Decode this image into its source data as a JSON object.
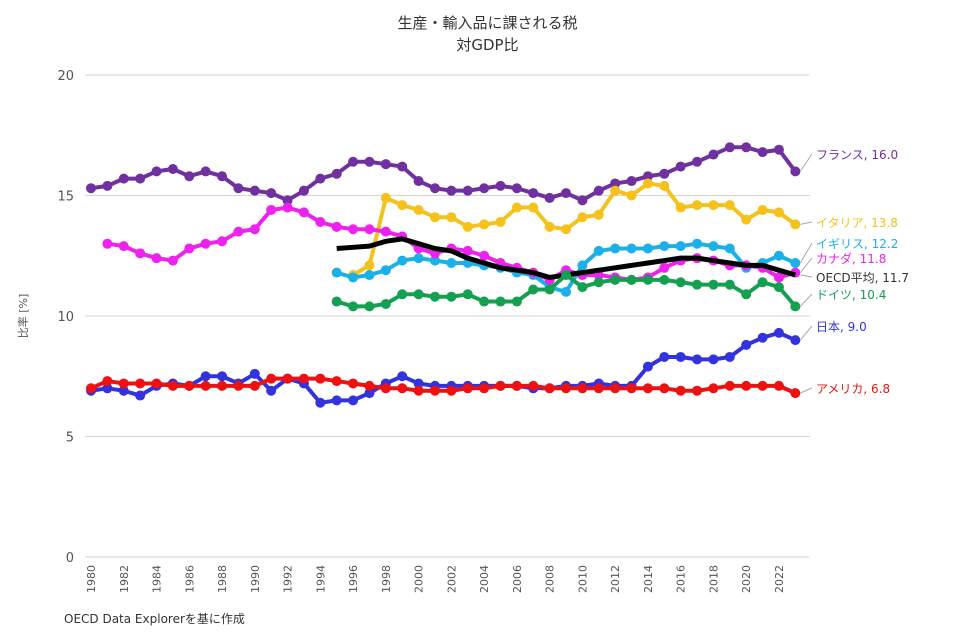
{
  "chart_data": {
    "type": "line",
    "title": "生産・輸入品に課される税",
    "subtitle": "対GDP比",
    "ylabel": "比率 [%]",
    "xlabel": "",
    "ylim": [
      0,
      20
    ],
    "yticks": [
      0,
      5,
      10,
      15,
      20
    ],
    "xlim": [
      1980,
      2023
    ],
    "xticks": [
      1980,
      1982,
      1984,
      1986,
      1988,
      1990,
      1992,
      1994,
      1996,
      1998,
      2000,
      2002,
      2004,
      2006,
      2008,
      2010,
      2012,
      2014,
      2016,
      2018,
      2020,
      2022
    ],
    "grid": true,
    "series": [
      {
        "name": "フランス",
        "label": "フランス, 16.0",
        "color": "#7030a0",
        "markers": true,
        "start": 1980,
        "values": [
          15.3,
          15.4,
          15.7,
          15.7,
          16.0,
          16.1,
          15.8,
          16.0,
          15.8,
          15.3,
          15.2,
          15.1,
          14.8,
          15.2,
          15.7,
          15.9,
          16.4,
          16.4,
          16.3,
          16.2,
          15.6,
          15.3,
          15.2,
          15.2,
          15.3,
          15.4,
          15.3,
          15.1,
          14.9,
          15.1,
          14.8,
          15.2,
          15.5,
          15.6,
          15.8,
          15.9,
          16.2,
          16.4,
          16.7,
          17.0,
          17.0,
          16.8,
          16.9,
          16.0
        ]
      },
      {
        "name": "イタリア",
        "label": "イタリア, 13.8",
        "color": "#f5c21b",
        "markers": true,
        "start": 1996,
        "values": [
          11.7,
          12.1,
          14.9,
          14.6,
          14.4,
          14.1,
          14.1,
          13.7,
          13.8,
          13.9,
          14.5,
          14.5,
          13.7,
          13.6,
          14.1,
          14.2,
          15.2,
          15.0,
          15.5,
          15.4,
          14.5,
          14.6,
          14.6,
          14.6,
          14.0,
          14.4,
          14.3,
          13.8
        ]
      },
      {
        "name": "イギリス",
        "label": "イギリス, 12.2",
        "color": "#1bb0e8",
        "markers": true,
        "start": 1995,
        "values": [
          11.8,
          11.6,
          11.7,
          11.9,
          12.3,
          12.4,
          12.3,
          12.2,
          12.2,
          12.1,
          12.0,
          11.8,
          11.7,
          11.2,
          11.0,
          12.1,
          12.7,
          12.8,
          12.8,
          12.8,
          12.9,
          12.9,
          13.0,
          12.9,
          12.8,
          12.0,
          12.2,
          12.5,
          12.2
        ]
      },
      {
        "name": "カナダ",
        "label": "カナダ, 11.8",
        "color": "#ee22ee",
        "markers": true,
        "start": 1981,
        "values": [
          13.0,
          12.9,
          12.6,
          12.4,
          12.3,
          12.8,
          13.0,
          13.1,
          13.5,
          13.6,
          14.4,
          14.5,
          14.3,
          13.9,
          13.7,
          13.6,
          13.6,
          13.5,
          13.3,
          12.8,
          12.6,
          12.8,
          12.7,
          12.5,
          12.2,
          12.0,
          11.8,
          11.5,
          11.9,
          11.7,
          11.7,
          11.6,
          11.5,
          11.6,
          12.0,
          12.3,
          12.4,
          12.3,
          12.1,
          12.1,
          12.0,
          11.6,
          11.8
        ]
      },
      {
        "name": "OECD平均",
        "label": "OECD平均, 11.7",
        "color": "#000000",
        "markers": false,
        "start": 1995,
        "values": [
          12.8,
          12.85,
          12.9,
          13.1,
          13.2,
          13.0,
          12.8,
          12.7,
          12.4,
          12.2,
          12.0,
          11.9,
          11.8,
          11.6,
          11.7,
          11.8,
          11.9,
          12.0,
          12.1,
          12.2,
          12.3,
          12.4,
          12.4,
          12.3,
          12.2,
          12.1,
          12.1,
          11.9,
          11.7
        ]
      },
      {
        "name": "ドイツ",
        "label": "ドイツ, 10.4",
        "color": "#14a050",
        "markers": true,
        "start": 1995,
        "values": [
          10.6,
          10.4,
          10.4,
          10.5,
          10.9,
          10.9,
          10.8,
          10.8,
          10.9,
          10.6,
          10.6,
          10.6,
          11.1,
          11.1,
          11.7,
          11.2,
          11.4,
          11.5,
          11.5,
          11.5,
          11.5,
          11.4,
          11.3,
          11.3,
          11.3,
          10.9,
          11.4,
          11.2,
          10.4
        ]
      },
      {
        "name": "日本",
        "label": "日本, 9.0",
        "color": "#3333dd",
        "markers": true,
        "start": 1980,
        "values": [
          6.9,
          7.0,
          6.9,
          6.7,
          7.1,
          7.2,
          7.1,
          7.5,
          7.5,
          7.2,
          7.6,
          6.9,
          7.4,
          7.2,
          6.4,
          6.5,
          6.5,
          6.8,
          7.2,
          7.5,
          7.2,
          7.1,
          7.1,
          7.1,
          7.1,
          7.1,
          7.1,
          7.0,
          7.0,
          7.1,
          7.1,
          7.2,
          7.1,
          7.1,
          7.9,
          8.3,
          8.3,
          8.2,
          8.2,
          8.3,
          8.8,
          9.1,
          9.3,
          9.0
        ]
      },
      {
        "name": "アメリカ",
        "label": "アメリカ, 6.8",
        "color": "#ee1111",
        "markers": true,
        "start": 1980,
        "values": [
          7.0,
          7.3,
          7.2,
          7.2,
          7.2,
          7.1,
          7.1,
          7.1,
          7.1,
          7.1,
          7.1,
          7.4,
          7.4,
          7.4,
          7.4,
          7.3,
          7.2,
          7.1,
          7.0,
          7.0,
          6.9,
          6.9,
          6.9,
          7.0,
          7.0,
          7.1,
          7.1,
          7.1,
          7.0,
          7.0,
          7.0,
          7.0,
          7.0,
          7.0,
          7.0,
          7.0,
          6.9,
          6.9,
          7.0,
          7.1,
          7.1,
          7.1,
          7.1,
          6.8
        ]
      }
    ],
    "source_note": "OECD Data Explorerを基に作成"
  }
}
